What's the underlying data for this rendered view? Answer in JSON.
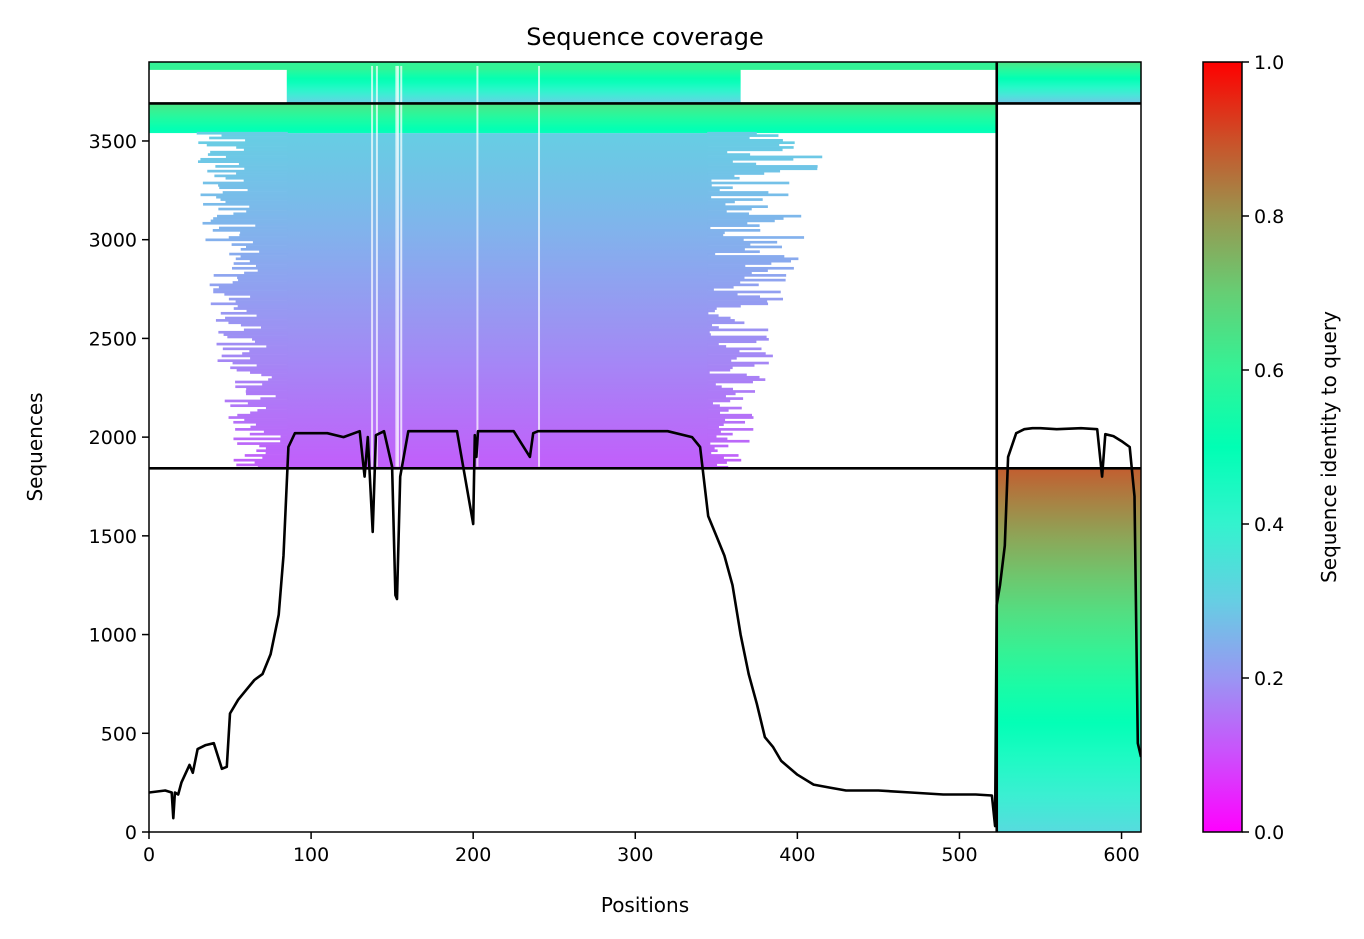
{
  "chart_data": {
    "type": "heatmap",
    "title": "Sequence coverage",
    "xlabel": "Positions",
    "ylabel": "Sequences",
    "xlim": [
      0,
      612
    ],
    "ylim": [
      0,
      3900
    ],
    "x_ticks": [
      0,
      100,
      200,
      300,
      400,
      500,
      600
    ],
    "y_ticks": [
      0,
      500,
      1000,
      1500,
      2000,
      2500,
      3000,
      3500
    ],
    "colorbar": {
      "label": "Sequence identity to query",
      "range": [
        0,
        1
      ],
      "ticks": [
        "0.0",
        "0.2",
        "0.4",
        "0.6",
        "0.8",
        "1.0"
      ],
      "colormap": "rainbow"
    },
    "segment_boundary_x": 523,
    "block_boundaries_y": [
      1842,
      3690
    ],
    "blocks": [
      {
        "region": "segment-2 paired",
        "y": [
          0,
          1842
        ],
        "x": [
          523,
          612
        ],
        "identity_bottom": 0.33,
        "identity_top": 0.88
      },
      {
        "region": "segment-1 unpaired",
        "y": [
          1842,
          3540
        ],
        "x_core": [
          85,
          345
        ],
        "x_extent": [
          10,
          400
        ],
        "identity_bottom": 0.12,
        "identity_top": 0.3
      },
      {
        "region": "segment-1 high identity",
        "y": [
          3540,
          3690
        ],
        "x": [
          0,
          523
        ],
        "identity_bottom": 0.48,
        "identity_top": 0.65
      },
      {
        "region": "segment-2 unpaired",
        "y": [
          3690,
          3900
        ],
        "x": [
          523,
          612
        ],
        "identity_bottom": 0.28,
        "identity_top": 0.65
      },
      {
        "region": "segment-1 top strip",
        "y": [
          3690,
          3900
        ],
        "x_core": [
          85,
          365
        ],
        "identity_bottom": 0.3,
        "identity_top": 0.65
      }
    ],
    "coverage_line": {
      "x": [
        0,
        10,
        14,
        15,
        16,
        18,
        20,
        25,
        27,
        30,
        35,
        40,
        45,
        48,
        50,
        55,
        60,
        65,
        70,
        75,
        80,
        83,
        86,
        90,
        100,
        110,
        120,
        130,
        133,
        135,
        138,
        140,
        145,
        150,
        152,
        153,
        155,
        160,
        170,
        180,
        190,
        200,
        201,
        202,
        203,
        205,
        215,
        225,
        235,
        237,
        240,
        245,
        260,
        280,
        300,
        320,
        335,
        340,
        345,
        350,
        355,
        360,
        365,
        370,
        375,
        380,
        385,
        390,
        400,
        410,
        420,
        430,
        450,
        470,
        490,
        510,
        520,
        522,
        523,
        525,
        528,
        530,
        535,
        540,
        545,
        550,
        560,
        575,
        585,
        588,
        590,
        595,
        600,
        605,
        608,
        610,
        612
      ],
      "y": [
        200,
        210,
        200,
        70,
        200,
        190,
        250,
        340,
        300,
        420,
        440,
        450,
        320,
        330,
        600,
        670,
        720,
        770,
        800,
        900,
        1100,
        1400,
        1950,
        2020,
        2020,
        2020,
        2000,
        2030,
        1800,
        2000,
        1520,
        2010,
        2030,
        1850,
        1200,
        1180,
        1800,
        2030,
        2030,
        2030,
        2030,
        1560,
        2010,
        1900,
        2030,
        2030,
        2030,
        2030,
        1900,
        2020,
        2030,
        2030,
        2030,
        2030,
        2030,
        2030,
        2000,
        1950,
        1600,
        1500,
        1400,
        1250,
        1000,
        800,
        650,
        480,
        430,
        360,
        290,
        240,
        225,
        210,
        210,
        200,
        190,
        190,
        185,
        30,
        1150,
        1250,
        1450,
        1900,
        2020,
        2040,
        2045,
        2045,
        2040,
        2045,
        2040,
        1800,
        2015,
        2005,
        1980,
        1950,
        1700,
        450,
        380
      ]
    }
  }
}
